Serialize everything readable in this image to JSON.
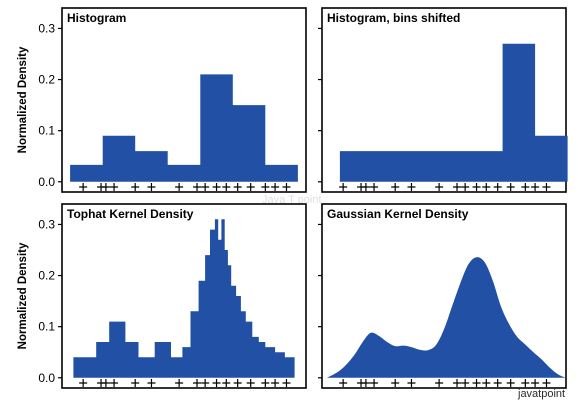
{
  "colors": {
    "fill": "#2150a5",
    "axes": "#000000",
    "background": "#ffffff"
  },
  "watermark_bottom": "javatpoint",
  "watermark_center": "Java T point",
  "chart_data": [
    {
      "type": "area",
      "title": "Histogram",
      "ylabel": "Normalized Density",
      "yticks": [
        "0.0",
        "0.1",
        "0.2",
        "0.3"
      ],
      "ylim": [
        -0.02,
        0.34
      ],
      "xlim": [
        -4.5,
        10.5
      ],
      "style": "step",
      "x": [
        -4.0,
        -2.0,
        -2.0,
        0.0,
        0.0,
        2.0,
        2.0,
        4.0,
        4.0,
        6.0,
        6.0,
        8.0,
        8.0,
        10.0,
        10.0
      ],
      "y": [
        0.033,
        0.033,
        0.09,
        0.09,
        0.06,
        0.06,
        0.033,
        0.033,
        0.21,
        0.21,
        0.15,
        0.15,
        0.033,
        0.033,
        0.0
      ],
      "rug": [
        -3.2,
        -2.1,
        -1.8,
        -1.3,
        0.0,
        1.0,
        2.7,
        3.8,
        4.3,
        5.0,
        5.6,
        6.3,
        7.1,
        8.0,
        8.6,
        9.3
      ]
    },
    {
      "type": "area",
      "title": "Histogram, bins shifted",
      "ylabel": "",
      "yticks": [],
      "ylim": [
        -0.02,
        0.34
      ],
      "xlim": [
        -4.5,
        10.5
      ],
      "style": "step",
      "x": [
        -3.4,
        6.6,
        6.6,
        8.6,
        8.6,
        10.6,
        10.6
      ],
      "y": [
        0.06,
        0.06,
        0.27,
        0.27,
        0.09,
        0.09,
        0.0
      ],
      "rug": [
        -3.2,
        -2.1,
        -1.8,
        -1.3,
        0.0,
        1.0,
        2.7,
        3.8,
        4.3,
        5.0,
        5.6,
        6.3,
        7.1,
        8.0,
        8.6,
        9.3
      ]
    },
    {
      "type": "area",
      "title": "Tophat Kernel Density",
      "ylabel": "Normalized Density",
      "yticks": [
        "0.0",
        "0.1",
        "0.2",
        "0.3"
      ],
      "ylim": [
        -0.02,
        0.34
      ],
      "xlim": [
        -4.5,
        10.5
      ],
      "style": "step",
      "x": [
        -3.8,
        -2.4,
        -2.4,
        -1.6,
        -1.6,
        -0.6,
        -0.6,
        0.2,
        0.2,
        1.2,
        1.2,
        2.2,
        2.2,
        2.9,
        2.9,
        3.4,
        3.4,
        3.9,
        3.9,
        4.3,
        4.3,
        4.6,
        4.6,
        4.9,
        4.9,
        5.1,
        5.1,
        5.3,
        5.3,
        5.5,
        5.5,
        5.7,
        5.7,
        5.9,
        5.9,
        6.2,
        6.2,
        6.5,
        6.5,
        6.8,
        6.8,
        7.2,
        7.2,
        7.6,
        7.6,
        8.0,
        8.0,
        8.6,
        8.6,
        9.2,
        9.2,
        9.8,
        9.8
      ],
      "y": [
        0.04,
        0.04,
        0.07,
        0.07,
        0.11,
        0.11,
        0.07,
        0.07,
        0.04,
        0.04,
        0.07,
        0.07,
        0.04,
        0.04,
        0.06,
        0.06,
        0.13,
        0.13,
        0.19,
        0.19,
        0.24,
        0.24,
        0.29,
        0.29,
        0.31,
        0.31,
        0.27,
        0.27,
        0.31,
        0.31,
        0.25,
        0.25,
        0.22,
        0.22,
        0.18,
        0.18,
        0.16,
        0.16,
        0.13,
        0.13,
        0.11,
        0.11,
        0.08,
        0.08,
        0.07,
        0.07,
        0.06,
        0.06,
        0.05,
        0.05,
        0.04,
        0.04,
        0.0
      ],
      "rug": [
        -3.2,
        -2.1,
        -1.8,
        -1.3,
        0.0,
        1.0,
        2.7,
        3.8,
        4.3,
        5.0,
        5.6,
        6.3,
        7.1,
        8.0,
        8.6,
        9.3
      ]
    },
    {
      "type": "area",
      "title": "Gaussian Kernel Density",
      "ylabel": "",
      "yticks": [],
      "ylim": [
        -0.02,
        0.34
      ],
      "xlim": [
        -4.5,
        10.5
      ],
      "style": "smooth",
      "x": [
        -4.2,
        -3.5,
        -3.0,
        -2.5,
        -2.0,
        -1.5,
        -1.0,
        -0.5,
        0.0,
        0.5,
        1.0,
        1.5,
        2.0,
        2.5,
        3.0,
        3.5,
        4.0,
        4.5,
        5.0,
        5.5,
        6.0,
        6.5,
        7.0,
        7.5,
        8.0,
        8.5,
        9.0,
        9.5,
        10.0,
        10.5
      ],
      "y": [
        0.0,
        0.012,
        0.026,
        0.045,
        0.07,
        0.088,
        0.082,
        0.07,
        0.062,
        0.063,
        0.06,
        0.055,
        0.054,
        0.064,
        0.095,
        0.14,
        0.185,
        0.222,
        0.236,
        0.226,
        0.19,
        0.14,
        0.105,
        0.08,
        0.065,
        0.05,
        0.036,
        0.02,
        0.007,
        0.0
      ],
      "rug": [
        -3.2,
        -2.1,
        -1.8,
        -1.3,
        0.0,
        1.0,
        2.7,
        3.8,
        4.3,
        5.0,
        5.6,
        6.3,
        7.1,
        8.0,
        8.6,
        9.3
      ]
    }
  ]
}
